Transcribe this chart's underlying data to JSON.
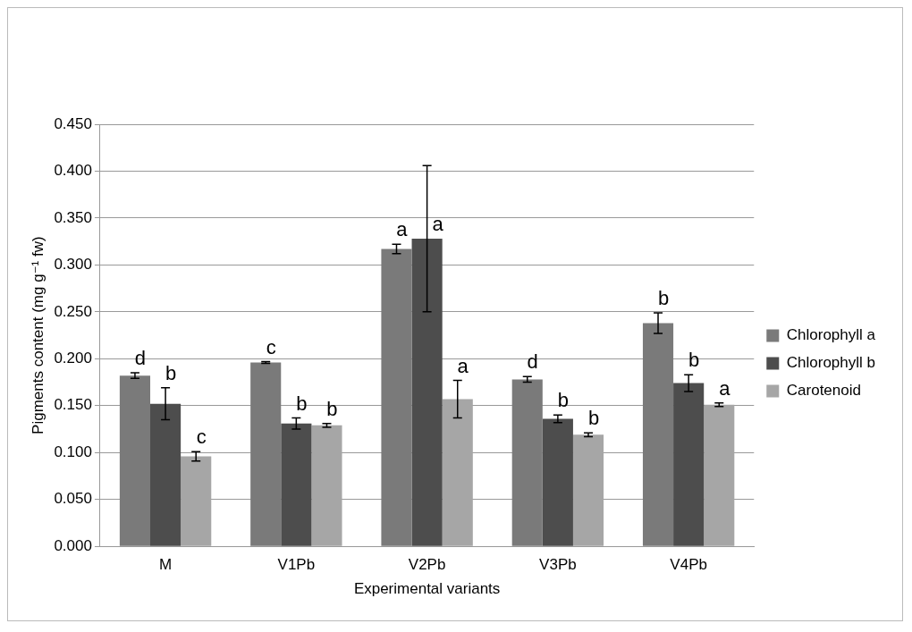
{
  "chart_data": {
    "type": "bar",
    "xlabel": "Experimental variants",
    "ylabel": "Pigments content (mg g⁻¹ fw)",
    "categories": [
      "M",
      "V1Pb",
      "V2Pb",
      "V3Pb",
      "V4Pb"
    ],
    "series": [
      {
        "name": "Chlorophyll a",
        "color": "#7a7a7a",
        "values": [
          0.182,
          0.196,
          0.317,
          0.178,
          0.238
        ],
        "errors": [
          0.003,
          0.001,
          0.005,
          0.003,
          0.011
        ],
        "value_labels": [
          "d",
          "c",
          "a",
          "d",
          "b"
        ]
      },
      {
        "name": "Chlorophyll b",
        "color": "#4d4d4d",
        "values": [
          0.152,
          0.131,
          0.328,
          0.136,
          0.174
        ],
        "errors": [
          0.017,
          0.006,
          0.078,
          0.004,
          0.009
        ],
        "value_labels": [
          "b",
          "b",
          "a",
          "b",
          "b"
        ]
      },
      {
        "name": "Carotenoid",
        "color": "#a6a6a6",
        "values": [
          0.096,
          0.129,
          0.157,
          0.119,
          0.151
        ],
        "errors": [
          0.005,
          0.002,
          0.02,
          0.002,
          0.002
        ],
        "value_labels": [
          "c",
          "b",
          "a",
          "b",
          "a"
        ]
      }
    ],
    "ylim": [
      0,
      0.45
    ],
    "yticks": [
      {
        "value": 0,
        "label": "0.000"
      },
      {
        "value": 0.05,
        "label": "0.050"
      },
      {
        "value": 0.1,
        "label": "0.100"
      },
      {
        "value": 0.15,
        "label": "0.150"
      },
      {
        "value": 0.2,
        "label": "0.200"
      },
      {
        "value": 0.25,
        "label": "0.250"
      },
      {
        "value": 0.3,
        "label": "0.300"
      },
      {
        "value": 0.35,
        "label": "0.350"
      },
      {
        "value": 0.4,
        "label": "0.400"
      },
      {
        "value": 0.45,
        "label": "0.450"
      }
    ],
    "grid": "y",
    "legend": "right"
  }
}
